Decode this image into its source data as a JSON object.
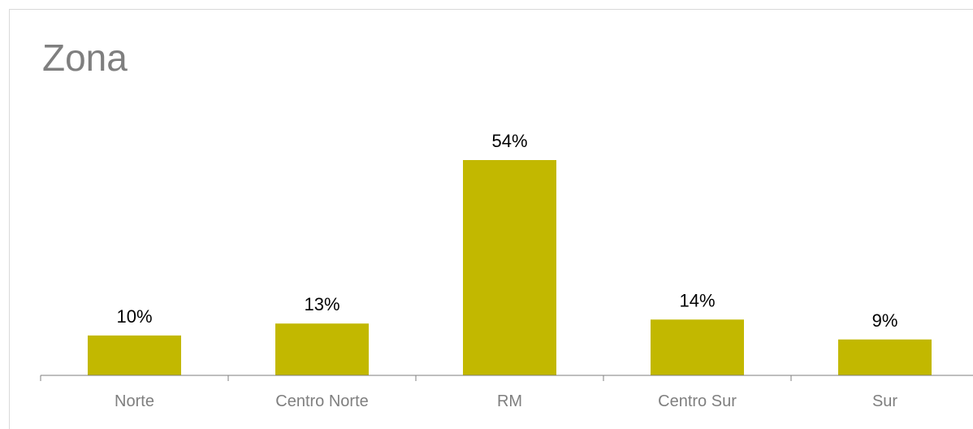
{
  "chart_data": {
    "type": "bar",
    "title": "Zona",
    "categories": [
      "Norte",
      "Centro Norte",
      "RM",
      "Centro Sur",
      "Sur"
    ],
    "values": [
      10,
      13,
      54,
      14,
      9
    ],
    "value_labels": [
      "10%",
      "13%",
      "54%",
      "14%",
      "9%"
    ],
    "unit": "%",
    "ylim": [
      0,
      60
    ],
    "grid": false,
    "legend": "none",
    "bar_color": "#c2b800",
    "title_color": "#7f7f7f",
    "axis_color": "#7f7f7f"
  }
}
